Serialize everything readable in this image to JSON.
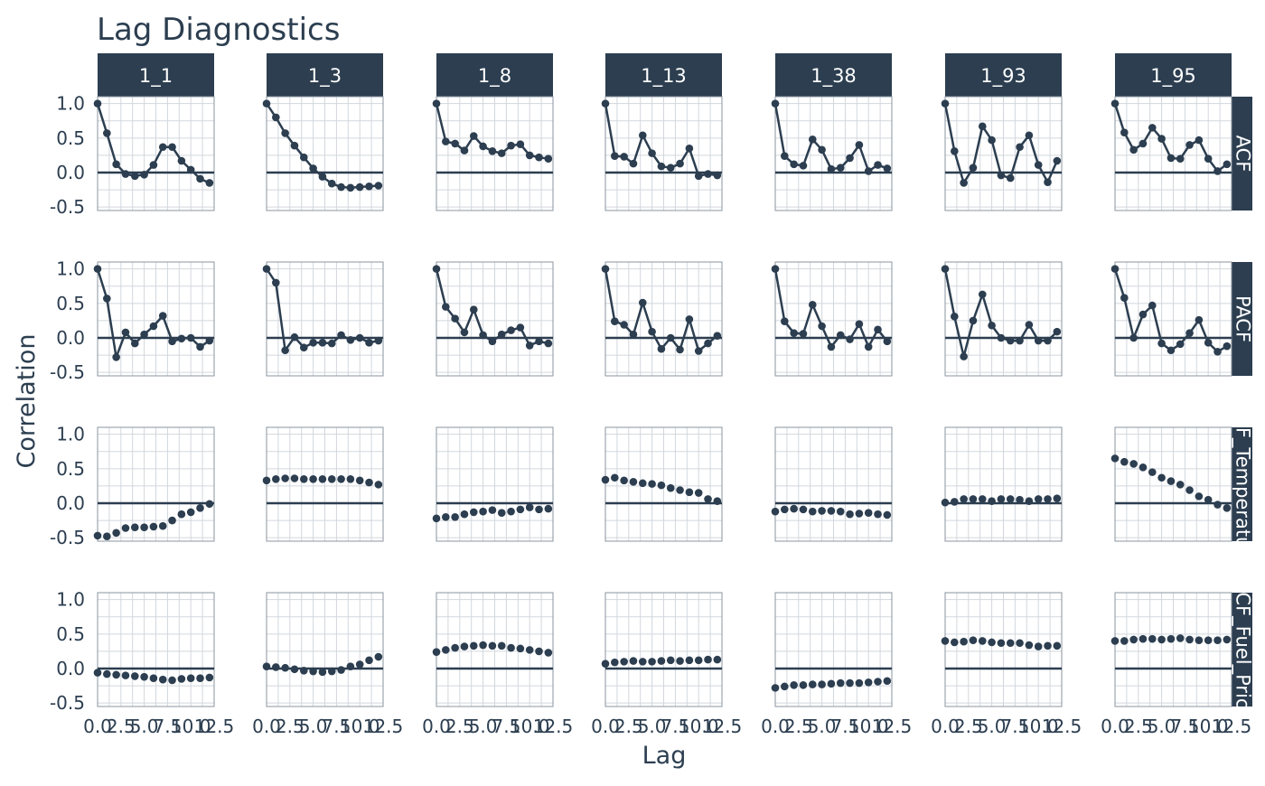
{
  "title": "Lag Diagnostics",
  "xlabel": "Lag",
  "ylabel": "Correlation",
  "chart_data": {
    "type": "line",
    "title": "Lag Diagnostics",
    "xlabel": "Lag",
    "ylabel": "Correlation",
    "xlim": [
      0,
      12.5
    ],
    "ylim": [
      -0.55,
      1.1
    ],
    "x_ticks": [
      "0.0",
      "2.5",
      "5.0",
      "7.5",
      "10.0",
      "12.5"
    ],
    "y_ticks": [
      "1.0",
      "0.5",
      "0.0",
      "-0.5"
    ],
    "columns": [
      "1_1",
      "1_3",
      "1_8",
      "1_13",
      "1_38",
      "1_93",
      "1_95"
    ],
    "rows": [
      "ACF",
      "PACF",
      "CCF_Temperature",
      "CCF_Fuel_Price"
    ],
    "lags": [
      0,
      1,
      2,
      3,
      4,
      5,
      6,
      7,
      8,
      9,
      10,
      11,
      12
    ],
    "panels": {
      "ACF": [
        [
          1.0,
          0.57,
          0.12,
          -0.02,
          -0.05,
          -0.03,
          0.11,
          0.37,
          0.37,
          0.17,
          0.04,
          -0.09,
          -0.15
        ],
        [
          1.0,
          0.8,
          0.57,
          0.39,
          0.22,
          0.06,
          -0.06,
          -0.16,
          -0.21,
          -0.22,
          -0.21,
          -0.2,
          -0.19
        ],
        [
          1.0,
          0.45,
          0.42,
          0.32,
          0.53,
          0.38,
          0.31,
          0.28,
          0.39,
          0.41,
          0.25,
          0.22,
          0.2
        ],
        [
          1.0,
          0.24,
          0.23,
          0.13,
          0.54,
          0.28,
          0.09,
          0.07,
          0.13,
          0.35,
          -0.05,
          -0.02,
          -0.04
        ],
        [
          1.0,
          0.24,
          0.12,
          0.1,
          0.48,
          0.33,
          0.05,
          0.07,
          0.21,
          0.4,
          0.02,
          0.11,
          0.06
        ],
        [
          1.0,
          0.31,
          -0.15,
          0.07,
          0.67,
          0.47,
          -0.04,
          -0.08,
          0.37,
          0.54,
          0.11,
          -0.14,
          0.17
        ],
        [
          1.0,
          0.58,
          0.33,
          0.42,
          0.65,
          0.49,
          0.21,
          0.2,
          0.4,
          0.47,
          0.2,
          0.02,
          0.12
        ]
      ],
      "PACF": [
        [
          1.0,
          0.57,
          -0.28,
          0.08,
          -0.08,
          0.05,
          0.17,
          0.32,
          -0.05,
          -0.01,
          0.0,
          -0.13,
          -0.04
        ],
        [
          1.0,
          0.8,
          -0.18,
          0.01,
          -0.14,
          -0.07,
          -0.07,
          -0.08,
          0.04,
          -0.03,
          0.0,
          -0.07,
          -0.04
        ],
        [
          1.0,
          0.45,
          0.28,
          0.08,
          0.41,
          0.04,
          -0.05,
          0.05,
          0.11,
          0.15,
          -0.11,
          -0.05,
          -0.08
        ],
        [
          1.0,
          0.24,
          0.19,
          0.05,
          0.51,
          0.09,
          -0.16,
          0.0,
          -0.17,
          0.27,
          -0.19,
          -0.08,
          0.03
        ],
        [
          1.0,
          0.24,
          0.07,
          0.06,
          0.48,
          0.17,
          -0.13,
          0.04,
          -0.02,
          0.2,
          -0.13,
          0.12,
          -0.05
        ],
        [
          1.0,
          0.31,
          -0.27,
          0.25,
          0.63,
          0.18,
          0.0,
          -0.04,
          -0.04,
          0.19,
          -0.04,
          -0.04,
          0.09
        ],
        [
          1.0,
          0.58,
          0.0,
          0.34,
          0.47,
          -0.08,
          -0.18,
          -0.09,
          0.07,
          0.26,
          -0.07,
          -0.2,
          -0.12
        ]
      ],
      "CCF_Temperature": [
        [
          -0.47,
          -0.48,
          -0.43,
          -0.36,
          -0.35,
          -0.35,
          -0.34,
          -0.33,
          -0.25,
          -0.16,
          -0.13,
          -0.07,
          -0.01
        ],
        [
          0.33,
          0.35,
          0.36,
          0.36,
          0.35,
          0.35,
          0.35,
          0.35,
          0.35,
          0.35,
          0.33,
          0.3,
          0.27
        ],
        [
          -0.22,
          -0.2,
          -0.2,
          -0.16,
          -0.13,
          -0.12,
          -0.1,
          -0.14,
          -0.12,
          -0.09,
          -0.06,
          -0.09,
          -0.08
        ],
        [
          0.34,
          0.37,
          0.33,
          0.31,
          0.29,
          0.28,
          0.26,
          0.22,
          0.19,
          0.16,
          0.15,
          0.06,
          0.03
        ],
        [
          -0.12,
          -0.09,
          -0.08,
          -0.09,
          -0.12,
          -0.11,
          -0.11,
          -0.12,
          -0.16,
          -0.15,
          -0.14,
          -0.16,
          -0.17
        ],
        [
          0.01,
          0.02,
          0.06,
          0.06,
          0.06,
          0.03,
          0.06,
          0.06,
          0.05,
          0.03,
          0.06,
          0.06,
          0.07
        ],
        [
          0.65,
          0.6,
          0.57,
          0.52,
          0.45,
          0.37,
          0.32,
          0.27,
          0.19,
          0.1,
          0.05,
          -0.02,
          -0.07
        ]
      ],
      "CCF_Fuel_Price": [
        [
          -0.06,
          -0.08,
          -0.09,
          -0.1,
          -0.11,
          -0.12,
          -0.14,
          -0.16,
          -0.17,
          -0.15,
          -0.14,
          -0.14,
          -0.13
        ],
        [
          0.03,
          0.02,
          0.01,
          -0.01,
          -0.03,
          -0.04,
          -0.05,
          -0.04,
          -0.02,
          0.03,
          0.06,
          0.12,
          0.17
        ],
        [
          0.24,
          0.27,
          0.3,
          0.32,
          0.33,
          0.34,
          0.33,
          0.33,
          0.3,
          0.29,
          0.27,
          0.25,
          0.23
        ],
        [
          0.07,
          0.09,
          0.1,
          0.11,
          0.1,
          0.1,
          0.11,
          0.12,
          0.11,
          0.12,
          0.12,
          0.13,
          0.13
        ],
        [
          -0.28,
          -0.26,
          -0.24,
          -0.24,
          -0.23,
          -0.23,
          -0.22,
          -0.21,
          -0.21,
          -0.21,
          -0.2,
          -0.19,
          -0.18
        ],
        [
          0.4,
          0.38,
          0.39,
          0.41,
          0.4,
          0.38,
          0.37,
          0.37,
          0.37,
          0.34,
          0.32,
          0.33,
          0.33
        ],
        [
          0.4,
          0.4,
          0.42,
          0.43,
          0.43,
          0.42,
          0.43,
          0.44,
          0.42,
          0.41,
          0.41,
          0.41,
          0.42
        ]
      ]
    }
  },
  "strips": {
    "top": [
      "1_1",
      "1_3",
      "1_8",
      "1_13",
      "1_38",
      "1_93",
      "1_95"
    ],
    "right": [
      "ACF",
      "PACF",
      "CCF_Temperature",
      "CCF_Fuel_Price"
    ]
  },
  "colors": {
    "accent": "#2c3e50",
    "grid": "#d2d7dd",
    "panel_border": "#8a949f",
    "strip_text": "#ffffff"
  }
}
